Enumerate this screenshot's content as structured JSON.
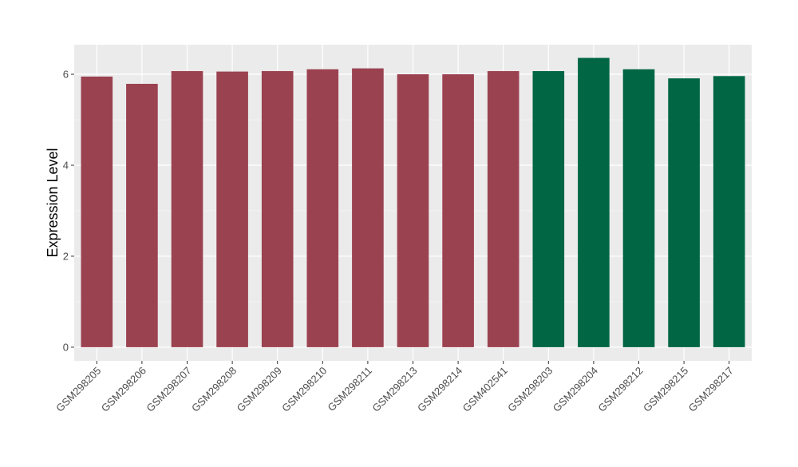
{
  "chart_data": {
    "type": "bar",
    "title": "",
    "xlabel": "",
    "ylabel": "Expression Level",
    "ylim": [
      -0.3,
      6.65
    ],
    "yticks": [
      0,
      2,
      4,
      6
    ],
    "grid": true,
    "categories": [
      "GSM298205",
      "GSM298206",
      "GSM298207",
      "GSM298208",
      "GSM298209",
      "GSM298210",
      "GSM298211",
      "GSM298213",
      "GSM298214",
      "GSM402541",
      "GSM298203",
      "GSM298204",
      "GSM298212",
      "GSM298215",
      "GSM298217"
    ],
    "values": [
      5.95,
      5.79,
      6.07,
      6.06,
      6.07,
      6.11,
      6.13,
      6.0,
      6.0,
      6.07,
      6.07,
      6.36,
      6.11,
      5.91,
      5.96
    ],
    "groups": [
      0,
      0,
      0,
      0,
      0,
      0,
      0,
      0,
      0,
      0,
      1,
      1,
      1,
      1,
      1
    ],
    "colors": [
      "#9B4250",
      "#006644"
    ],
    "panel_background": "#EBEBEB"
  }
}
